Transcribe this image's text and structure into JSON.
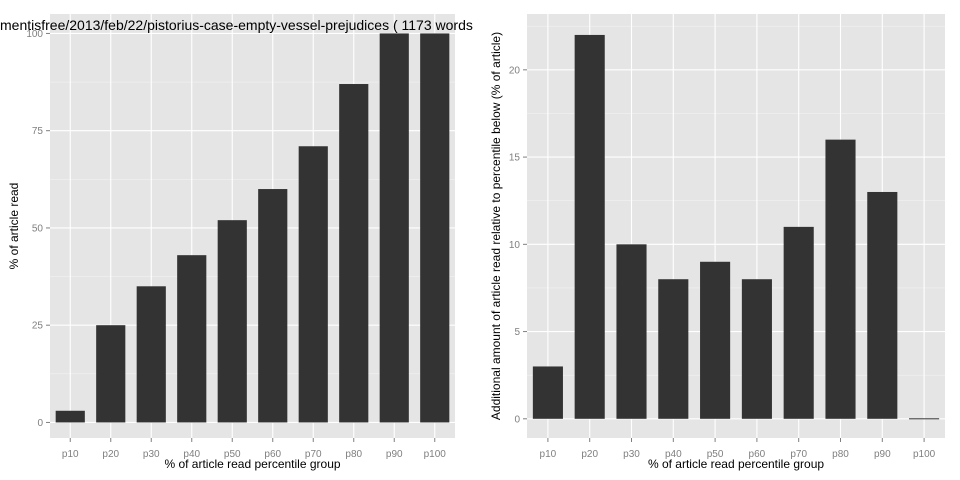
{
  "chart_data": [
    {
      "type": "bar",
      "title": "mentisfree/2013/feb/22/pistorius-case-empty-vessel-prejudices ( 1173 words",
      "xlabel": "% of article read percentile group",
      "ylabel": "% of article read",
      "categories": [
        "p10",
        "p20",
        "p30",
        "p40",
        "p50",
        "p60",
        "p70",
        "p80",
        "p90",
        "p100"
      ],
      "values": [
        3,
        25,
        35,
        43,
        52,
        60,
        71,
        87,
        100,
        100
      ],
      "ylim": [
        -4,
        105
      ],
      "yticks": [
        0,
        25,
        50,
        75,
        100
      ],
      "ytick_labels": [
        "0",
        "25",
        "50",
        "75",
        "100"
      ],
      "grid": true,
      "bar_color": "#333333",
      "panel_color": "#e5e5e5",
      "gridline_color": "#ffffff"
    },
    {
      "type": "bar",
      "title": "",
      "xlabel": "% of article read percentile group",
      "ylabel": "Additional amount of article read relative to percentile below (% of article)",
      "categories": [
        "p10",
        "p20",
        "p30",
        "p40",
        "p50",
        "p60",
        "p70",
        "p80",
        "p90",
        "p100"
      ],
      "values": [
        3,
        22,
        10,
        8,
        9,
        8,
        11,
        16,
        13,
        0
      ],
      "ylim": [
        -1.1,
        23.2
      ],
      "yticks": [
        0,
        5,
        10,
        15,
        20
      ],
      "ytick_labels": [
        "0",
        "5",
        "10",
        "15",
        "20"
      ],
      "grid": true,
      "bar_color": "#333333",
      "panel_color": "#e5e5e5",
      "gridline_color": "#ffffff"
    }
  ]
}
